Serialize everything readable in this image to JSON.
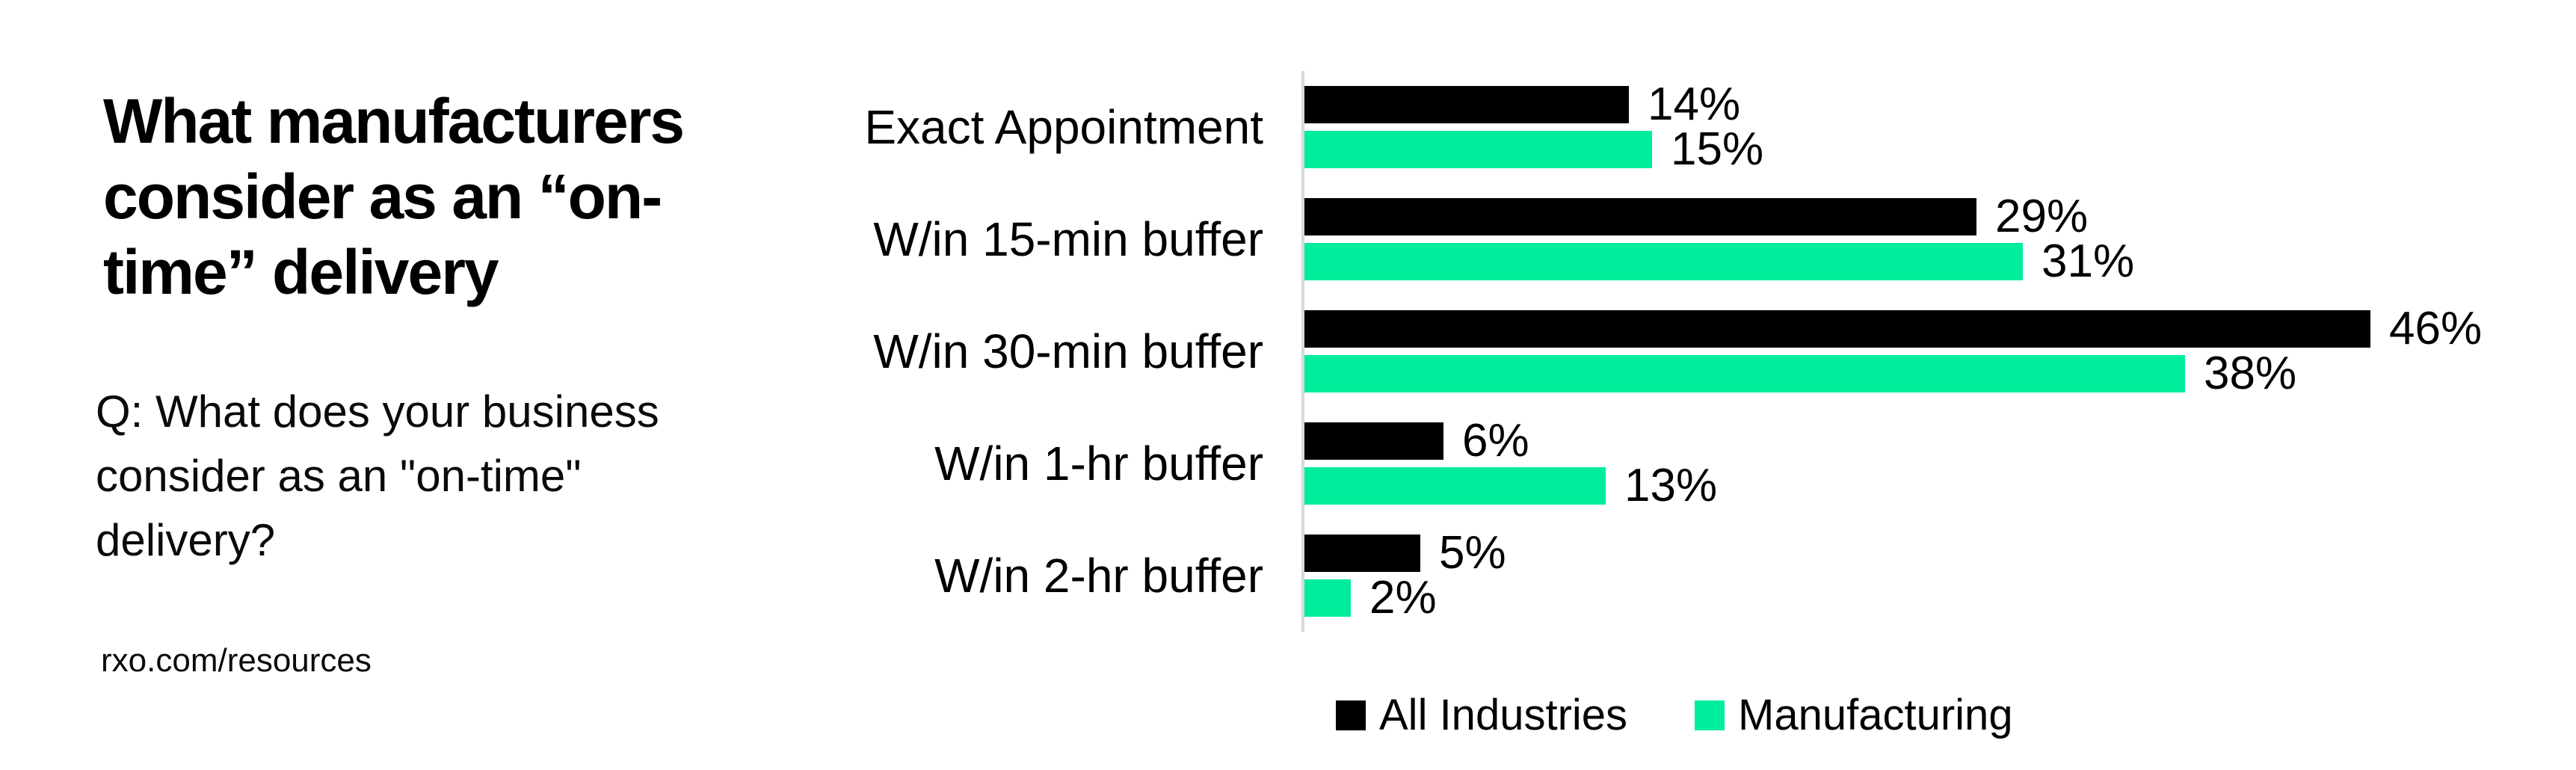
{
  "page": {
    "background": "#ffffff"
  },
  "left_panel": {
    "title": "What manufacturers consider as an “on-time” delivery",
    "title_lines": [
      "What manufacturers",
      "consider as an “on-",
      "time” delivery"
    ],
    "subtitle": "Q: What does your business consider as an \"on-time\" delivery?",
    "subtitle_lines": [
      "Q: What does your business",
      "consider as an \"on-time\"",
      "delivery?"
    ],
    "footer": "rxo.com/resources"
  },
  "chart_data": {
    "type": "bar",
    "orientation": "horizontal",
    "title": "",
    "xlabel": "",
    "ylabel": "",
    "xlim": [
      0,
      50
    ],
    "grid": false,
    "axis_color": "#d9d9d9",
    "value_suffix": "%",
    "categories": [
      "Exact Appointment",
      "W/in 15-min buffer",
      "W/in 30-min buffer",
      "W/in 1-hr buffer",
      "W/in 2-hr buffer"
    ],
    "series": [
      {
        "name": "All Industries",
        "color": "#000000",
        "values": [
          14,
          29,
          46,
          6,
          5
        ]
      },
      {
        "name": "Manufacturing",
        "color": "#00ee9b",
        "values": [
          15,
          31,
          38,
          13,
          2
        ]
      }
    ],
    "legend_position": "bottom"
  }
}
